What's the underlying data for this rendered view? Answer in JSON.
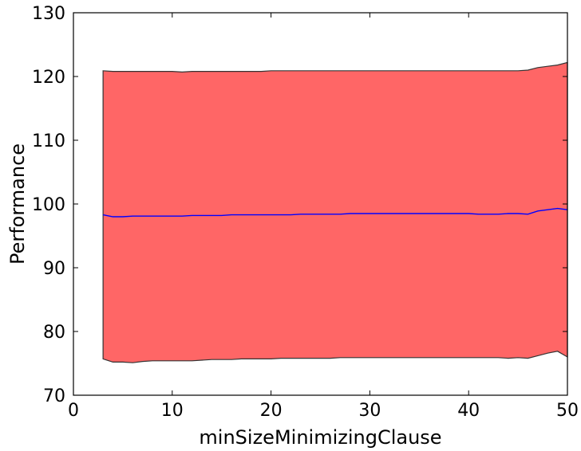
{
  "chart_data": {
    "type": "area",
    "title": "",
    "xlabel": "minSizeMinimizingClause",
    "ylabel": "Performance",
    "xlim": [
      0,
      50
    ],
    "ylim": [
      70,
      130
    ],
    "xticks": [
      0,
      10,
      20,
      30,
      40,
      50
    ],
    "yticks": [
      70,
      80,
      90,
      100,
      110,
      120,
      130
    ],
    "grid": false,
    "colors": {
      "band_fill": "#ff6666",
      "band_edge": "#333333",
      "mean_line": "#0000ff",
      "axes": "#000000"
    },
    "x": [
      3,
      4,
      5,
      6,
      7,
      8,
      9,
      10,
      11,
      12,
      13,
      14,
      15,
      16,
      17,
      18,
      19,
      20,
      21,
      22,
      23,
      24,
      25,
      26,
      27,
      28,
      29,
      30,
      31,
      32,
      33,
      34,
      35,
      36,
      37,
      38,
      39,
      40,
      41,
      42,
      43,
      44,
      45,
      46,
      47,
      48,
      49,
      50
    ],
    "series": [
      {
        "values": [
          98.3,
          98.0,
          98.0,
          98.1,
          98.1,
          98.1,
          98.1,
          98.1,
          98.1,
          98.2,
          98.2,
          98.2,
          98.2,
          98.3,
          98.3,
          98.3,
          98.3,
          98.3,
          98.3,
          98.3,
          98.4,
          98.4,
          98.4,
          98.4,
          98.4,
          98.5,
          98.5,
          98.5,
          98.5,
          98.5,
          98.5,
          98.5,
          98.5,
          98.5,
          98.5,
          98.5,
          98.5,
          98.5,
          98.4,
          98.4,
          98.4,
          98.5,
          98.5,
          98.4,
          98.9,
          99.1,
          99.3,
          99.1
        ]
      },
      {
        "values": [
          120.9,
          120.8,
          120.8,
          120.8,
          120.8,
          120.8,
          120.8,
          120.8,
          120.7,
          120.8,
          120.8,
          120.8,
          120.8,
          120.8,
          120.8,
          120.8,
          120.8,
          120.9,
          120.9,
          120.9,
          120.9,
          120.9,
          120.9,
          120.9,
          120.9,
          120.9,
          120.9,
          120.9,
          120.9,
          120.9,
          120.9,
          120.9,
          120.9,
          120.9,
          120.9,
          120.9,
          120.9,
          120.9,
          120.9,
          120.9,
          120.9,
          120.9,
          120.9,
          121.0,
          121.4,
          121.6,
          121.8,
          122.2
        ]
      },
      {
        "values": [
          75.7,
          75.2,
          75.2,
          75.1,
          75.3,
          75.4,
          75.4,
          75.4,
          75.4,
          75.4,
          75.5,
          75.6,
          75.6,
          75.6,
          75.7,
          75.7,
          75.7,
          75.7,
          75.8,
          75.8,
          75.8,
          75.8,
          75.8,
          75.8,
          75.9,
          75.9,
          75.9,
          75.9,
          75.9,
          75.9,
          75.9,
          75.9,
          75.9,
          75.9,
          75.9,
          75.9,
          75.9,
          75.9,
          75.9,
          75.9,
          75.9,
          75.8,
          75.9,
          75.8,
          76.2,
          76.6,
          76.9,
          76.0
        ]
      }
    ]
  }
}
